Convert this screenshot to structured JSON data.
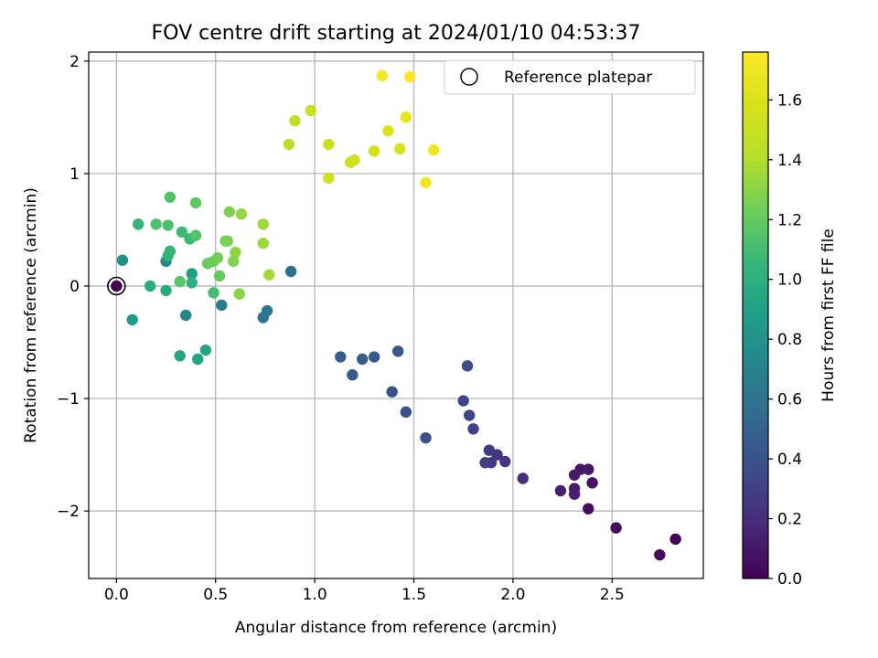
{
  "chart_data": {
    "type": "scatter",
    "title": "FOV centre drift starting at 2024/01/10 04:53:37",
    "xlabel": "Angular distance from reference (arcmin)",
    "ylabel": "Rotation from reference (arcmin)",
    "xlim": [
      -0.14,
      2.96
    ],
    "ylim": [
      -2.6,
      2.08
    ],
    "xticks": [
      0.0,
      0.5,
      1.0,
      1.5,
      2.0,
      2.5
    ],
    "xtick_labels": [
      "0.0",
      "0.5",
      "1.0",
      "1.5",
      "2.0",
      "2.5"
    ],
    "yticks": [
      -2,
      -1,
      0,
      1,
      2
    ],
    "ytick_labels": [
      "−2",
      "−1",
      "0",
      "1",
      "2"
    ],
    "grid": true,
    "legend": {
      "placement": "top-right",
      "entries": [
        "Reference platepar"
      ]
    },
    "reference_point": {
      "x": 0.0,
      "y": 0.0
    },
    "colorbar": {
      "label": "Hours from first FF file",
      "colormap": "viridis",
      "range": [
        0.0,
        1.76
      ],
      "ticks": [
        0.0,
        0.2,
        0.4,
        0.6,
        0.8,
        1.0,
        1.2,
        1.4,
        1.6
      ],
      "tick_labels": [
        "0.0",
        "0.2",
        "0.4",
        "0.6",
        "0.8",
        "1.0",
        "1.2",
        "1.4",
        "1.6"
      ]
    },
    "points": [
      {
        "x": 0.0,
        "y": 0.0,
        "c": 0.0
      },
      {
        "x": 2.82,
        "y": -2.25,
        "c": 0.02
      },
      {
        "x": 2.74,
        "y": -2.39,
        "c": 0.03
      },
      {
        "x": 2.52,
        "y": -2.15,
        "c": 0.05
      },
      {
        "x": 2.38,
        "y": -1.98,
        "c": 0.06
      },
      {
        "x": 2.4,
        "y": -1.75,
        "c": 0.08
      },
      {
        "x": 2.38,
        "y": -1.63,
        "c": 0.09
      },
      {
        "x": 2.34,
        "y": -1.63,
        "c": 0.1
      },
      {
        "x": 2.31,
        "y": -1.68,
        "c": 0.11
      },
      {
        "x": 2.31,
        "y": -1.8,
        "c": 0.12
      },
      {
        "x": 2.31,
        "y": -1.85,
        "c": 0.13
      },
      {
        "x": 2.24,
        "y": -1.82,
        "c": 0.14
      },
      {
        "x": 2.05,
        "y": -1.71,
        "c": 0.2
      },
      {
        "x": 1.96,
        "y": -1.56,
        "c": 0.25
      },
      {
        "x": 1.92,
        "y": -1.5,
        "c": 0.26
      },
      {
        "x": 1.89,
        "y": -1.57,
        "c": 0.27
      },
      {
        "x": 1.88,
        "y": -1.46,
        "c": 0.28
      },
      {
        "x": 1.86,
        "y": -1.57,
        "c": 0.29
      },
      {
        "x": 1.8,
        "y": -1.27,
        "c": 0.31
      },
      {
        "x": 1.78,
        "y": -1.15,
        "c": 0.32
      },
      {
        "x": 1.75,
        "y": -1.02,
        "c": 0.33
      },
      {
        "x": 1.77,
        "y": -0.71,
        "c": 0.36
      },
      {
        "x": 1.56,
        "y": -1.35,
        "c": 0.38
      },
      {
        "x": 1.46,
        "y": -1.12,
        "c": 0.39
      },
      {
        "x": 1.39,
        "y": -0.94,
        "c": 0.4
      },
      {
        "x": 1.42,
        "y": -0.58,
        "c": 0.42
      },
      {
        "x": 1.3,
        "y": -0.63,
        "c": 0.44
      },
      {
        "x": 1.24,
        "y": -0.65,
        "c": 0.45
      },
      {
        "x": 1.19,
        "y": -0.79,
        "c": 0.46
      },
      {
        "x": 1.13,
        "y": -0.63,
        "c": 0.47
      },
      {
        "x": 0.88,
        "y": 0.13,
        "c": 0.6
      },
      {
        "x": 0.74,
        "y": -0.28,
        "c": 0.62
      },
      {
        "x": 0.76,
        "y": -0.22,
        "c": 0.63
      },
      {
        "x": 0.53,
        "y": -0.17,
        "c": 0.66
      },
      {
        "x": 0.35,
        "y": -0.26,
        "c": 0.72
      },
      {
        "x": 0.25,
        "y": 0.22,
        "c": 0.75
      },
      {
        "x": 0.03,
        "y": 0.23,
        "c": 0.8
      },
      {
        "x": 0.08,
        "y": -0.3,
        "c": 0.86
      },
      {
        "x": 0.38,
        "y": 0.11,
        "c": 0.9
      },
      {
        "x": 0.41,
        "y": -0.65,
        "c": 0.92
      },
      {
        "x": 0.45,
        "y": -0.57,
        "c": 0.93
      },
      {
        "x": 0.32,
        "y": -0.62,
        "c": 0.94
      },
      {
        "x": 0.25,
        "y": -0.04,
        "c": 0.96
      },
      {
        "x": 0.17,
        "y": 0.0,
        "c": 0.98
      },
      {
        "x": 0.38,
        "y": 0.03,
        "c": 1.0
      },
      {
        "x": 0.26,
        "y": 0.27,
        "c": 1.02
      },
      {
        "x": 0.11,
        "y": 0.55,
        "c": 1.04
      },
      {
        "x": 0.27,
        "y": 0.31,
        "c": 1.05
      },
      {
        "x": 0.37,
        "y": 0.42,
        "c": 1.06
      },
      {
        "x": 0.33,
        "y": 0.48,
        "c": 1.08
      },
      {
        "x": 0.49,
        "y": -0.06,
        "c": 1.1
      },
      {
        "x": 0.26,
        "y": 0.54,
        "c": 1.12
      },
      {
        "x": 0.2,
        "y": 0.55,
        "c": 1.13
      },
      {
        "x": 0.27,
        "y": 0.79,
        "c": 1.14
      },
      {
        "x": 0.4,
        "y": 0.45,
        "c": 1.15
      },
      {
        "x": 0.32,
        "y": 0.04,
        "c": 1.16
      },
      {
        "x": 0.4,
        "y": 0.74,
        "c": 1.18
      },
      {
        "x": 0.52,
        "y": 0.09,
        "c": 1.2
      },
      {
        "x": 0.46,
        "y": 0.2,
        "c": 1.21
      },
      {
        "x": 0.49,
        "y": 0.22,
        "c": 1.22
      },
      {
        "x": 0.51,
        "y": 0.25,
        "c": 1.24
      },
      {
        "x": 0.56,
        "y": 0.4,
        "c": 1.25
      },
      {
        "x": 0.55,
        "y": 0.4,
        "c": 1.26
      },
      {
        "x": 0.57,
        "y": 0.66,
        "c": 1.27
      },
      {
        "x": 0.59,
        "y": 0.22,
        "c": 1.28
      },
      {
        "x": 0.62,
        "y": -0.07,
        "c": 1.3
      },
      {
        "x": 0.6,
        "y": 0.3,
        "c": 1.31
      },
      {
        "x": 0.63,
        "y": 0.64,
        "c": 1.32
      },
      {
        "x": 0.74,
        "y": 0.55,
        "c": 1.34
      },
      {
        "x": 0.74,
        "y": 0.38,
        "c": 1.35
      },
      {
        "x": 0.77,
        "y": 0.1,
        "c": 1.37
      },
      {
        "x": 0.87,
        "y": 1.26,
        "c": 1.45
      },
      {
        "x": 0.9,
        "y": 1.47,
        "c": 1.47
      },
      {
        "x": 0.98,
        "y": 1.56,
        "c": 1.5
      },
      {
        "x": 1.07,
        "y": 1.26,
        "c": 1.52
      },
      {
        "x": 1.07,
        "y": 0.96,
        "c": 1.53
      },
      {
        "x": 1.18,
        "y": 1.1,
        "c": 1.54
      },
      {
        "x": 1.2,
        "y": 1.12,
        "c": 1.55
      },
      {
        "x": 1.3,
        "y": 1.2,
        "c": 1.57
      },
      {
        "x": 1.43,
        "y": 1.22,
        "c": 1.59
      },
      {
        "x": 1.37,
        "y": 1.38,
        "c": 1.62
      },
      {
        "x": 1.46,
        "y": 1.5,
        "c": 1.67
      },
      {
        "x": 1.6,
        "y": 1.21,
        "c": 1.7
      },
      {
        "x": 1.56,
        "y": 0.92,
        "c": 1.71
      },
      {
        "x": 1.34,
        "y": 1.87,
        "c": 1.74
      },
      {
        "x": 1.48,
        "y": 1.86,
        "c": 1.76
      }
    ]
  }
}
